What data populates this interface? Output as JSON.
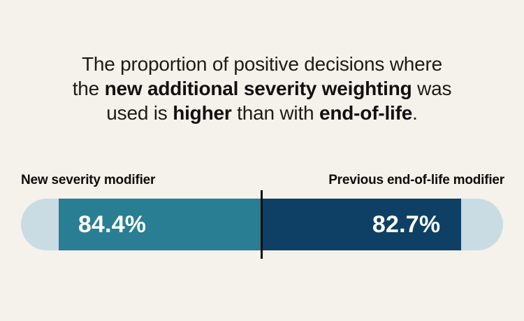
{
  "background_color": "#f5f1eb",
  "title": {
    "full_text": "The proportion of positive decisions where the new additional severity weighting was used is higher than with end-of-life.",
    "lines": [
      {
        "segments": [
          {
            "text": "The proportion of positive decisions where",
            "bold": false
          }
        ]
      },
      {
        "segments": [
          {
            "text": "the ",
            "bold": false
          },
          {
            "text": "new additional severity weighting",
            "bold": true
          },
          {
            "text": " was",
            "bold": false
          }
        ]
      },
      {
        "segments": [
          {
            "text": "used is ",
            "bold": false
          },
          {
            "text": "higher",
            "bold": true
          },
          {
            "text": " than with ",
            "bold": false
          },
          {
            "text": "end-of-life",
            "bold": true
          },
          {
            "text": ".",
            "bold": false
          }
        ]
      }
    ]
  },
  "chart_data": {
    "type": "bar",
    "orientation": "horizontal-back-to-back",
    "categories": [
      "New severity modifier",
      "Previous end-of-life modifier"
    ],
    "values": [
      84.4,
      82.7
    ],
    "value_labels": [
      "84.4%",
      "82.7%"
    ],
    "xlim": [
      0,
      100
    ],
    "grid": false,
    "legend_position": "labels-above-bar-ends",
    "colors": {
      "left_fill": "#2a7e93",
      "right_fill": "#0e4065",
      "track": "#c9dce4",
      "divider": "#0d0d0d",
      "value_text": "#ffffff"
    }
  }
}
